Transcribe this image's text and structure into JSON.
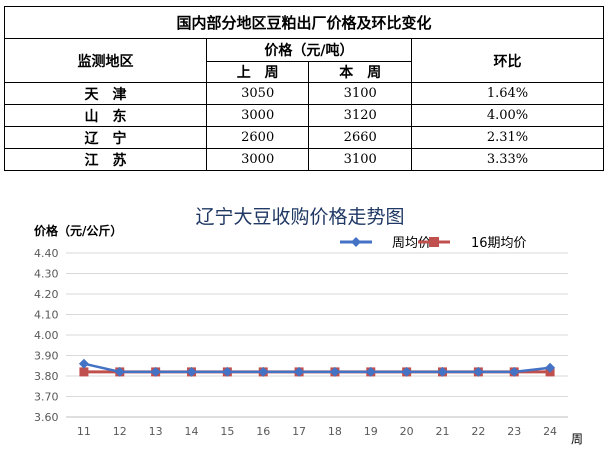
{
  "table": {
    "title": "国内部分地区豆粕出厂价格及环比变化",
    "headers": {
      "region": "监测地区",
      "price": "价格（元/吨）",
      "prev": "上　周",
      "curr": "本　周",
      "change": "环比"
    },
    "rows": [
      {
        "region": "天津",
        "prev": "3050",
        "curr": "3100",
        "change": "1.64%"
      },
      {
        "region": "山东",
        "prev": "3000",
        "curr": "3120",
        "change": "4.00%"
      },
      {
        "region": "辽宁",
        "prev": "2600",
        "curr": "2660",
        "change": "2.31%"
      },
      {
        "region": "江苏",
        "prev": "3000",
        "curr": "3100",
        "change": "3.33%"
      }
    ]
  },
  "chart_data": {
    "type": "line",
    "title": "辽宁大豆收购价格走势图",
    "ylabel": "价格（元/公斤）",
    "xlabel": "周",
    "ylim": [
      3.6,
      4.4
    ],
    "yticks": [
      "4.40",
      "4.30",
      "4.20",
      "4.10",
      "4.00",
      "3.90",
      "3.80",
      "3.70",
      "3.60"
    ],
    "x": [
      "11",
      "12",
      "13",
      "14",
      "15",
      "16",
      "17",
      "18",
      "19",
      "20",
      "21",
      "22",
      "23",
      "24"
    ],
    "series": [
      {
        "name": "周均价",
        "color": "#4472C4",
        "marker": "diamond",
        "values": [
          3.86,
          3.82,
          3.82,
          3.82,
          3.82,
          3.82,
          3.82,
          3.82,
          3.82,
          3.82,
          3.82,
          3.82,
          3.82,
          3.84
        ]
      },
      {
        "name": "16期均价",
        "color": "#C0504D",
        "marker": "square",
        "values": [
          3.82,
          3.82,
          3.82,
          3.82,
          3.82,
          3.82,
          3.82,
          3.82,
          3.82,
          3.82,
          3.82,
          3.82,
          3.82,
          3.82
        ]
      }
    ],
    "grid": true,
    "legend": "top-right"
  }
}
